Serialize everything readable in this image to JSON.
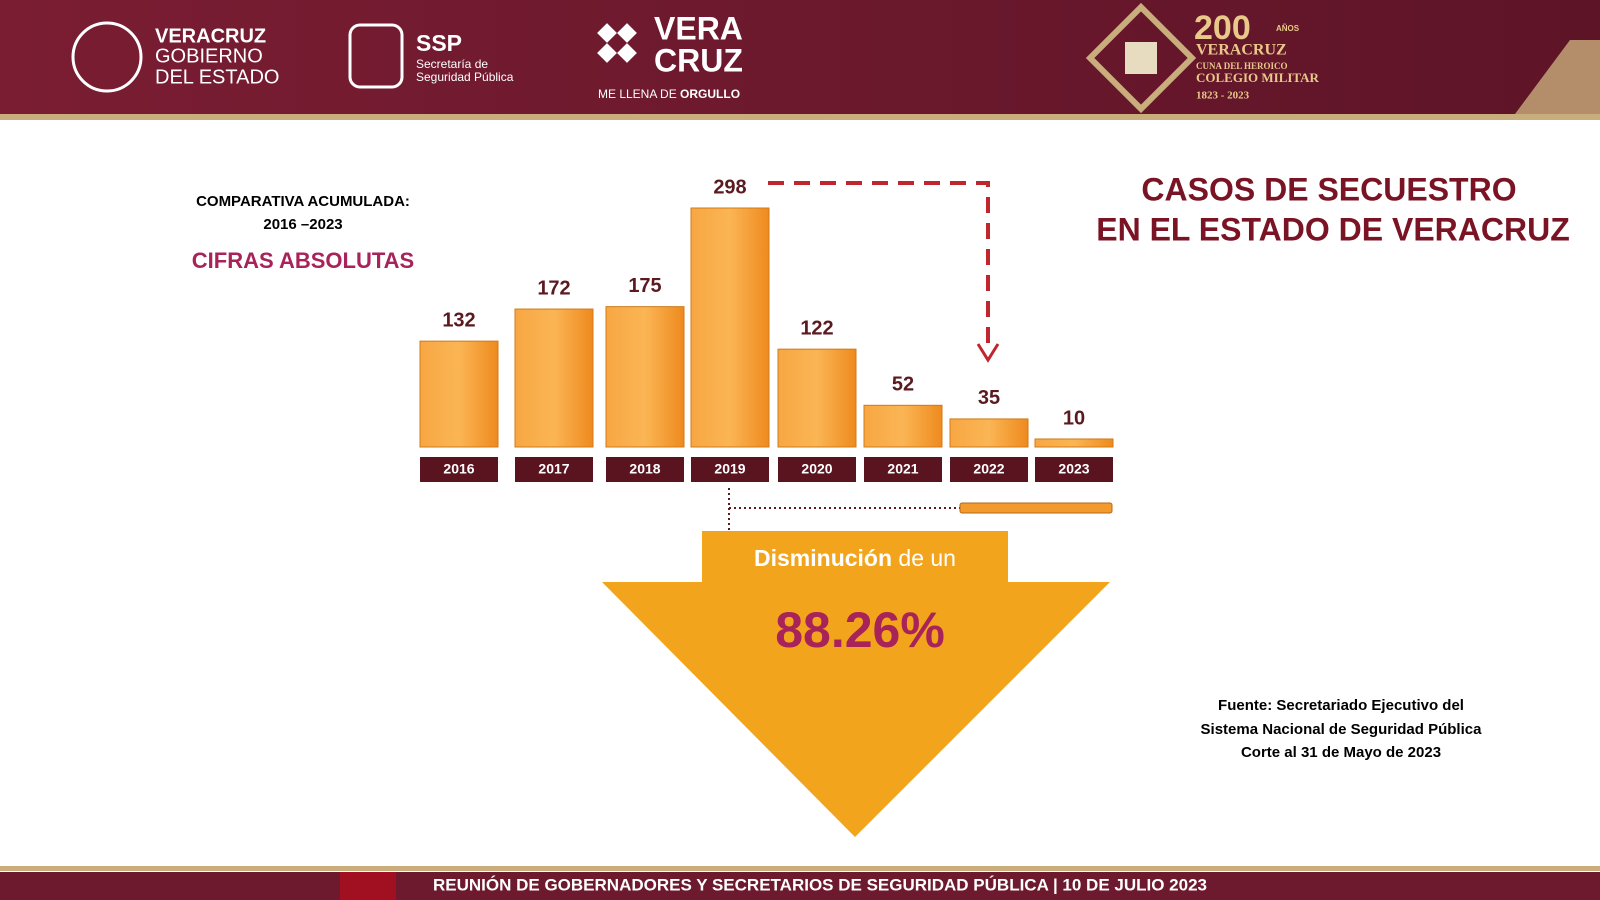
{
  "header": {
    "logo1": [
      "VERACRUZ",
      "GOBIERNO",
      "DEL ESTADO"
    ],
    "logo2": [
      "SSP",
      "Secretaría de",
      "Seguridad Pública"
    ],
    "logo3": [
      "VERA",
      "CRUZ",
      "ME LLENA DE",
      "ORGULLO"
    ],
    "logo4": [
      "200",
      "AÑOS",
      "VERACRUZ",
      "CUNA DEL HEROICO",
      "COLEGIO MILITAR",
      "1823 - 2023"
    ]
  },
  "chart_data": {
    "type": "bar",
    "title": [
      "CASOS DE SECUESTRO",
      "EN EL ESTADO DE VERACRUZ"
    ],
    "subtitle": [
      "COMPARATIVA ACUMULADA:",
      "2016 –2023",
      "CIFRAS ABSOLUTAS"
    ],
    "categories": [
      "2016",
      "2017",
      "2018",
      "2019",
      "2020",
      "2021",
      "2022",
      "2023"
    ],
    "values": [
      132,
      172,
      175,
      298,
      122,
      52,
      35,
      10
    ],
    "color": "#f39a2e",
    "annotations": {
      "decrease": [
        "Disminución",
        "de un"
      ],
      "percent": "88.26%"
    },
    "source": [
      "Fuente: Secretariado Ejecutivo del",
      "Sistema Nacional de Seguridad Pública",
      "Corte al 31 de Mayo de 2023"
    ]
  },
  "footer": "REUNIÓN DE GOBERNADORES Y SECRETARIOS DE SEGURIDAD PÚBLICA | 10 DE JULIO 2023"
}
